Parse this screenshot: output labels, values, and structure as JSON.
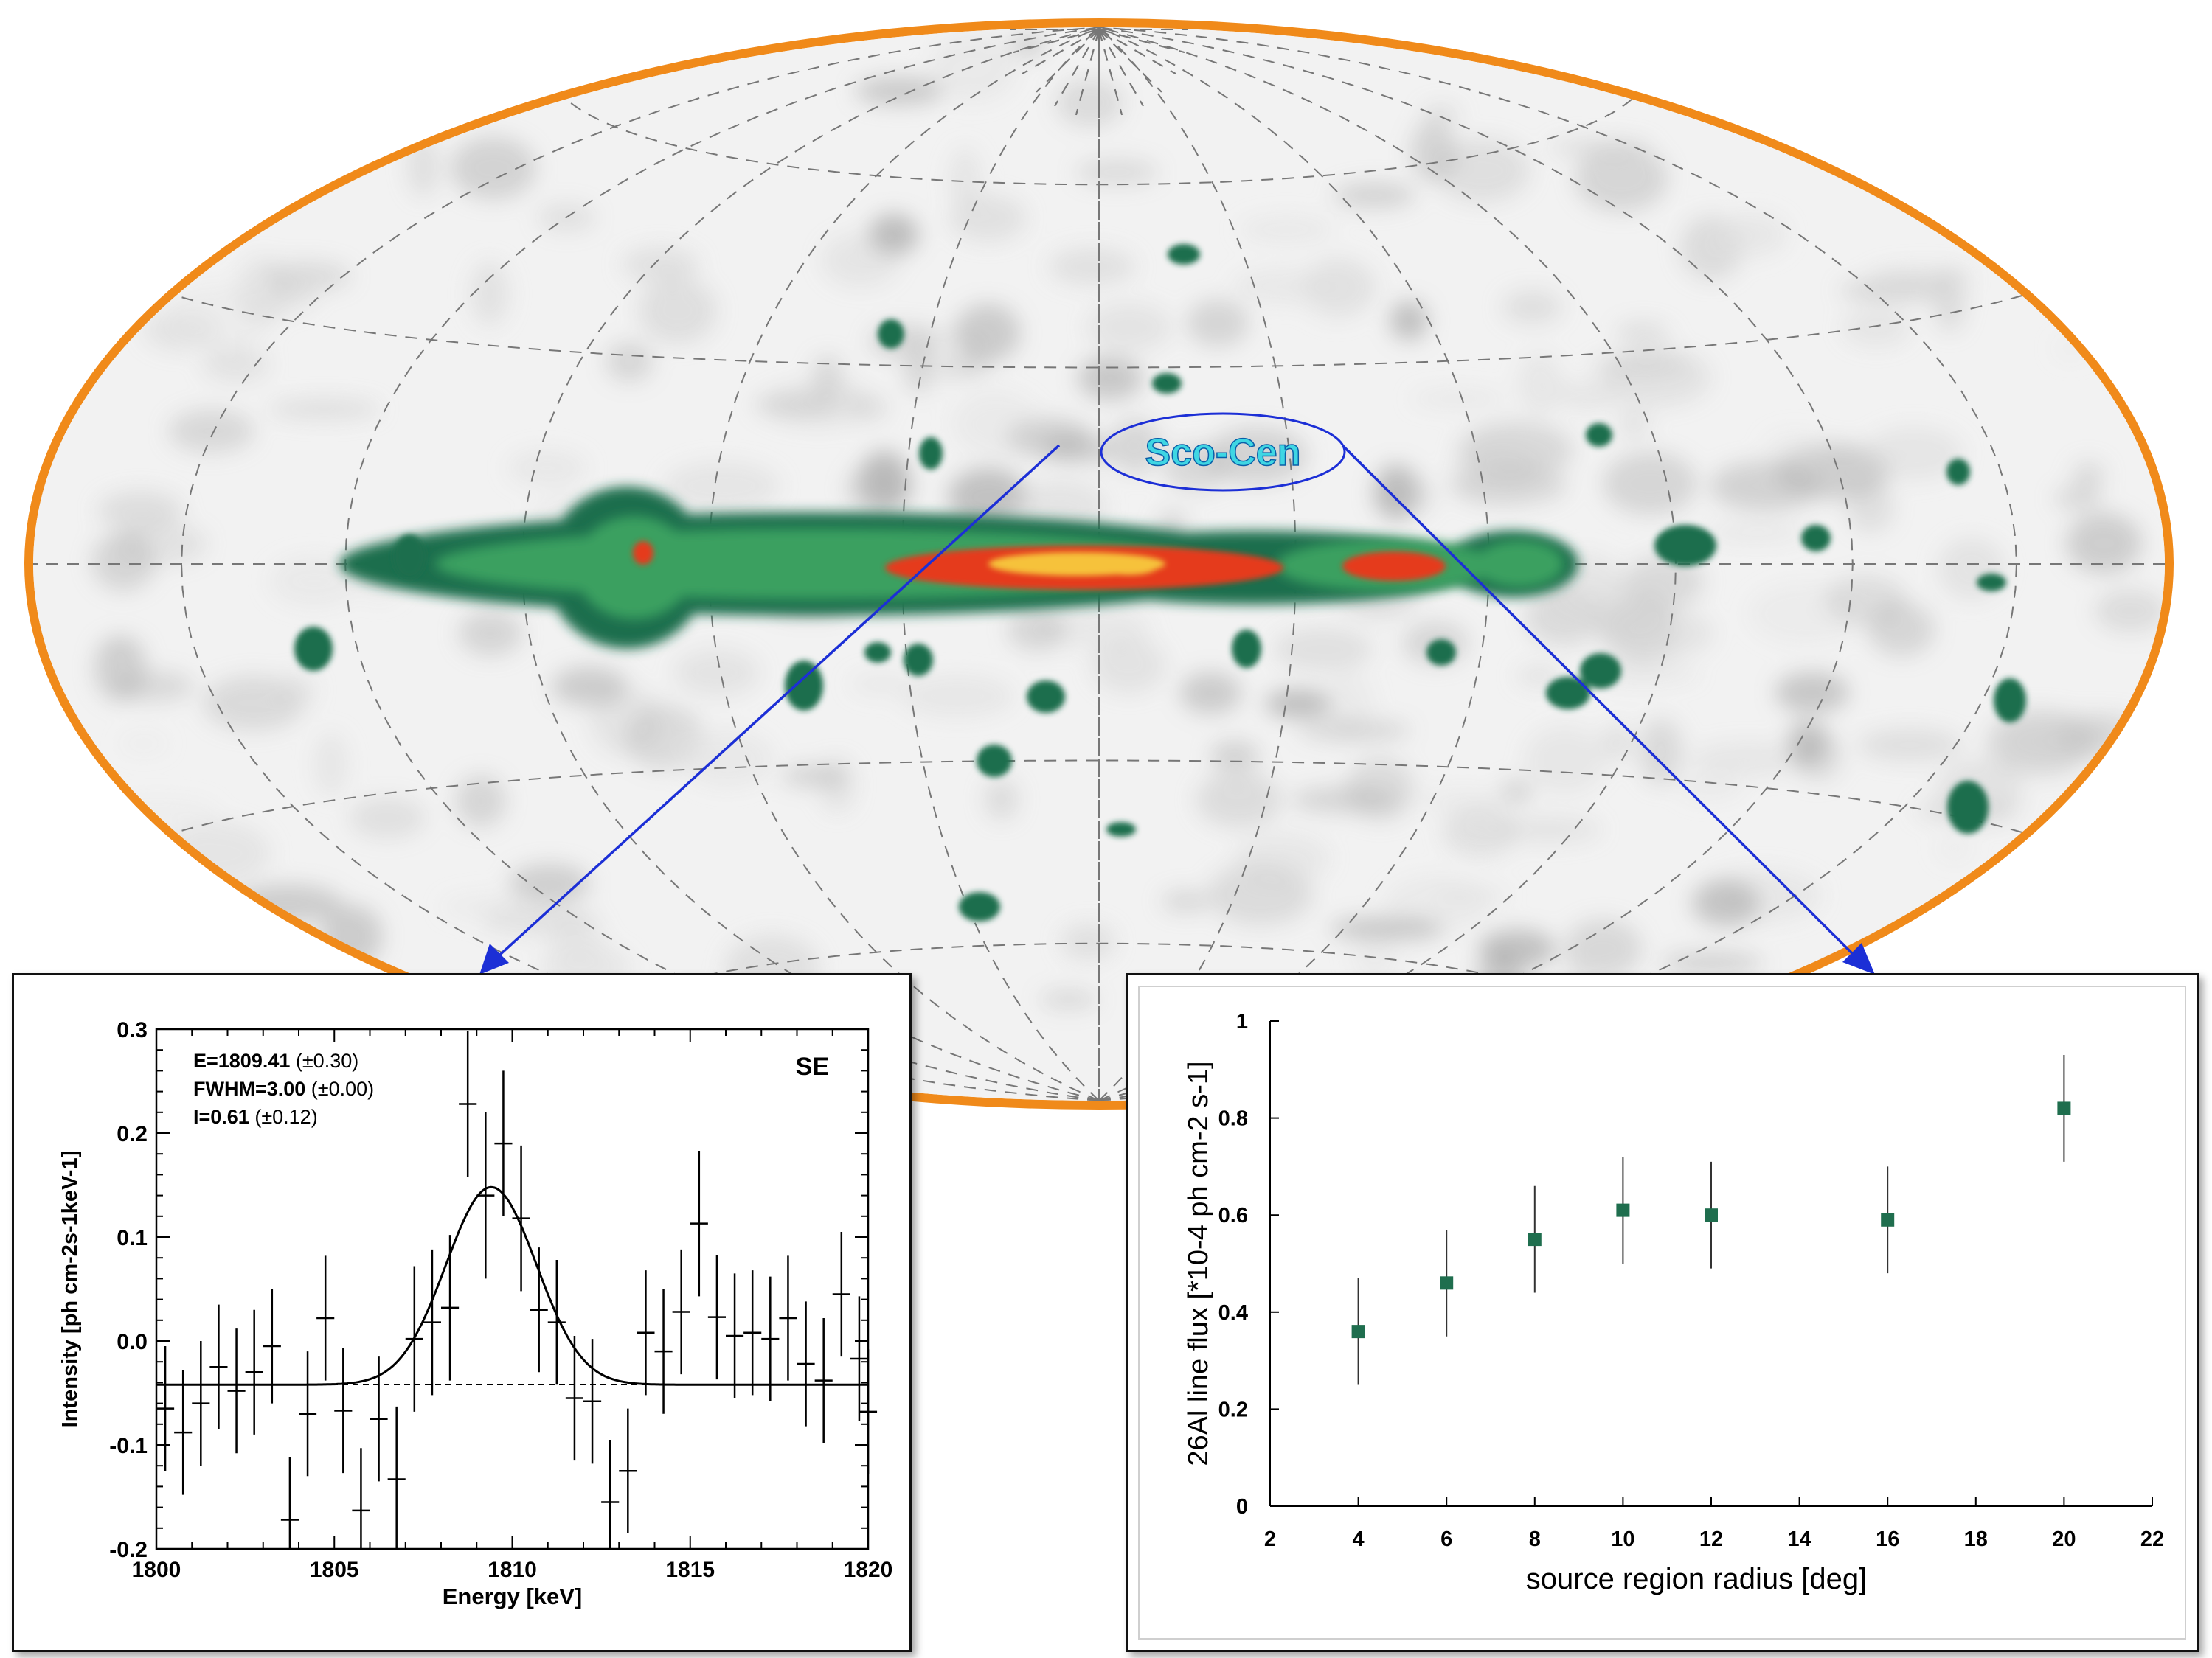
{
  "map": {
    "label": "Sco-Cen",
    "colors": {
      "ridge_outer": "#1f6e4e",
      "ridge_mid": "#3aa060",
      "ridge_hot": "#e53b1b",
      "ridge_core": "#f6c23a",
      "border": "#f08a1a",
      "background": "#f2f2f2",
      "arrow": "#1c2fd6",
      "label_text": "#3fd6e3"
    }
  },
  "chart_data": [
    {
      "type": "scatter",
      "panel": "spectrum",
      "title": "",
      "xlabel": "Energy [keV]",
      "ylabel": "Intensity [ph cm-2s-1keV-1]",
      "xlim": [
        1800,
        1820
      ],
      "ylim": [
        -0.2,
        0.3
      ],
      "xticks": [
        "1800",
        "1805",
        "1810",
        "1815",
        "1820"
      ],
      "yticks": [
        "0.3",
        "0.2",
        "0.1",
        "0.0",
        "-0.1",
        "-0.2"
      ],
      "region_label": "SE",
      "annotations": [
        {
          "bold": "E=1809.41",
          "rest": " (±0.30)"
        },
        {
          "bold": "FWHM=3.00",
          "rest": " (±0.00)"
        },
        {
          "bold": "I=0.61",
          "rest": " (±0.12)"
        }
      ],
      "fit": {
        "baseline": -0.042,
        "amplitude": 0.19,
        "center": 1809.41,
        "fwhm": 3.0
      },
      "points": [
        {
          "x": 1800.25,
          "y": -0.065,
          "err": 0.06
        },
        {
          "x": 1800.75,
          "y": -0.088,
          "err": 0.06
        },
        {
          "x": 1801.25,
          "y": -0.06,
          "err": 0.06
        },
        {
          "x": 1801.75,
          "y": -0.025,
          "err": 0.06
        },
        {
          "x": 1802.25,
          "y": -0.048,
          "err": 0.06
        },
        {
          "x": 1802.75,
          "y": -0.03,
          "err": 0.06
        },
        {
          "x": 1803.25,
          "y": -0.005,
          "err": 0.055
        },
        {
          "x": 1803.75,
          "y": -0.172,
          "err": 0.06
        },
        {
          "x": 1804.25,
          "y": -0.07,
          "err": 0.06
        },
        {
          "x": 1804.75,
          "y": 0.022,
          "err": 0.06
        },
        {
          "x": 1805.25,
          "y": -0.067,
          "err": 0.06
        },
        {
          "x": 1805.75,
          "y": -0.163,
          "err": 0.06
        },
        {
          "x": 1806.25,
          "y": -0.075,
          "err": 0.06
        },
        {
          "x": 1806.75,
          "y": -0.133,
          "err": 0.07
        },
        {
          "x": 1807.25,
          "y": 0.002,
          "err": 0.07
        },
        {
          "x": 1807.75,
          "y": 0.018,
          "err": 0.07
        },
        {
          "x": 1808.25,
          "y": 0.032,
          "err": 0.07
        },
        {
          "x": 1808.75,
          "y": 0.228,
          "err": 0.07
        },
        {
          "x": 1809.25,
          "y": 0.14,
          "err": 0.08
        },
        {
          "x": 1809.75,
          "y": 0.19,
          "err": 0.07
        },
        {
          "x": 1810.25,
          "y": 0.118,
          "err": 0.07
        },
        {
          "x": 1810.75,
          "y": 0.03,
          "err": 0.06
        },
        {
          "x": 1811.25,
          "y": 0.018,
          "err": 0.06
        },
        {
          "x": 1811.75,
          "y": -0.055,
          "err": 0.06
        },
        {
          "x": 1812.25,
          "y": -0.058,
          "err": 0.06
        },
        {
          "x": 1812.75,
          "y": -0.155,
          "err": 0.06
        },
        {
          "x": 1813.25,
          "y": -0.125,
          "err": 0.06
        },
        {
          "x": 1813.75,
          "y": 0.008,
          "err": 0.06
        },
        {
          "x": 1814.25,
          "y": -0.01,
          "err": 0.06
        },
        {
          "x": 1814.75,
          "y": 0.028,
          "err": 0.06
        },
        {
          "x": 1815.25,
          "y": 0.113,
          "err": 0.07
        },
        {
          "x": 1815.75,
          "y": 0.023,
          "err": 0.06
        },
        {
          "x": 1816.25,
          "y": 0.005,
          "err": 0.06
        },
        {
          "x": 1816.75,
          "y": 0.008,
          "err": 0.06
        },
        {
          "x": 1817.25,
          "y": 0.002,
          "err": 0.06
        },
        {
          "x": 1817.75,
          "y": 0.022,
          "err": 0.06
        },
        {
          "x": 1818.25,
          "y": -0.022,
          "err": 0.06
        },
        {
          "x": 1818.75,
          "y": -0.038,
          "err": 0.06
        },
        {
          "x": 1819.25,
          "y": 0.045,
          "err": 0.06
        },
        {
          "x": 1819.75,
          "y": -0.017,
          "err": 0.06
        },
        {
          "x": 1820.0,
          "y": -0.068,
          "err": 0.06
        }
      ]
    },
    {
      "type": "scatter",
      "panel": "flux",
      "title": "",
      "xlabel": "source region radius [deg]",
      "ylabel": "26Al line flux [*10-4 ph cm-2 s-1]",
      "xlim": [
        2,
        22
      ],
      "ylim": [
        0,
        1
      ],
      "xticks": [
        "2",
        "4",
        "6",
        "8",
        "10",
        "12",
        "14",
        "16",
        "18",
        "20",
        "22"
      ],
      "yticks": [
        "0",
        "0.2",
        "0.4",
        "0.6",
        "0.8",
        "1"
      ],
      "marker_color": "#1f6e4e",
      "points": [
        {
          "x": 4,
          "y": 0.36,
          "err": 0.11
        },
        {
          "x": 6,
          "y": 0.46,
          "err": 0.11
        },
        {
          "x": 8,
          "y": 0.55,
          "err": 0.11
        },
        {
          "x": 10,
          "y": 0.61,
          "err": 0.11
        },
        {
          "x": 12,
          "y": 0.6,
          "err": 0.11
        },
        {
          "x": 16,
          "y": 0.59,
          "err": 0.11
        },
        {
          "x": 20,
          "y": 0.82,
          "err": 0.11
        }
      ]
    }
  ]
}
